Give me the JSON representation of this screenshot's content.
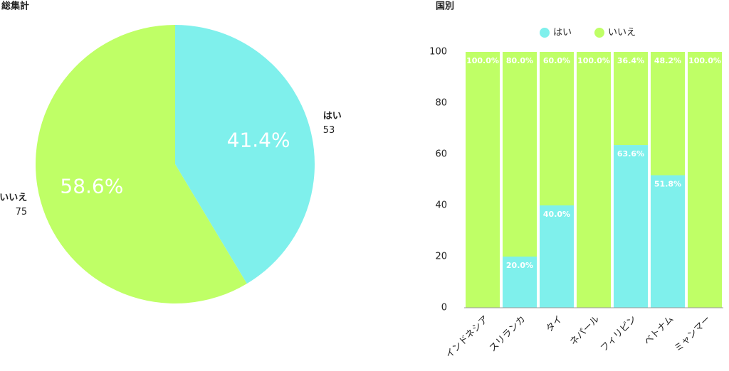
{
  "chart_data": [
    {
      "type": "pie",
      "title": "総集計",
      "categories": [
        "はい",
        "いいえ"
      ],
      "values": [
        53,
        75
      ],
      "percent_labels": [
        "41.4%",
        "58.6%"
      ],
      "colors": [
        "#7ff0ec",
        "#bfff66"
      ]
    },
    {
      "type": "stacked_bar",
      "title": "国別",
      "categories": [
        "インドネシア",
        "スリランカ",
        "タイ",
        "ネパール",
        "フィリピン",
        "ベトナム",
        "ミャンマー"
      ],
      "series": [
        {
          "name": "はい",
          "color": "#7ff0ec",
          "values": [
            0,
            20,
            40,
            0,
            63.6,
            51.8,
            0
          ],
          "value_labels": [
            null,
            "20.0%",
            "40.0%",
            null,
            "63.6%",
            "51.8%",
            null
          ]
        },
        {
          "name": "いいえ",
          "color": "#bfff66",
          "values": [
            100,
            80,
            60,
            100,
            36.4,
            48.2,
            100
          ],
          "value_labels": [
            "100.0%",
            "80.0%",
            "60.0%",
            "100.0%",
            "36.4%",
            "48.2%",
            "100.0%"
          ]
        }
      ],
      "ylim": [
        0,
        100
      ],
      "yticks": [
        0,
        20,
        40,
        60,
        80,
        100
      ],
      "grid": false
    }
  ]
}
